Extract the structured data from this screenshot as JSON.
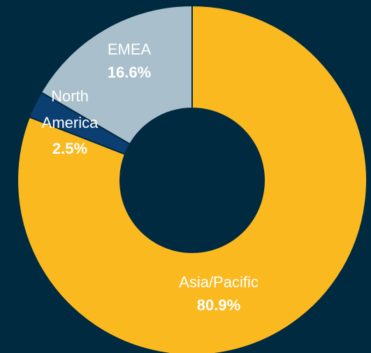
{
  "chart_data": {
    "type": "donut",
    "categories": [
      "Asia/Pacific",
      "North America",
      "EMEA"
    ],
    "values": [
      80.9,
      2.5,
      16.6
    ],
    "value_labels": [
      "80.9%",
      "2.5%",
      "16.6%"
    ],
    "colors": [
      "#fbb920",
      "#0b3f72",
      "#a9bfcc"
    ],
    "background": "#002a40"
  }
}
